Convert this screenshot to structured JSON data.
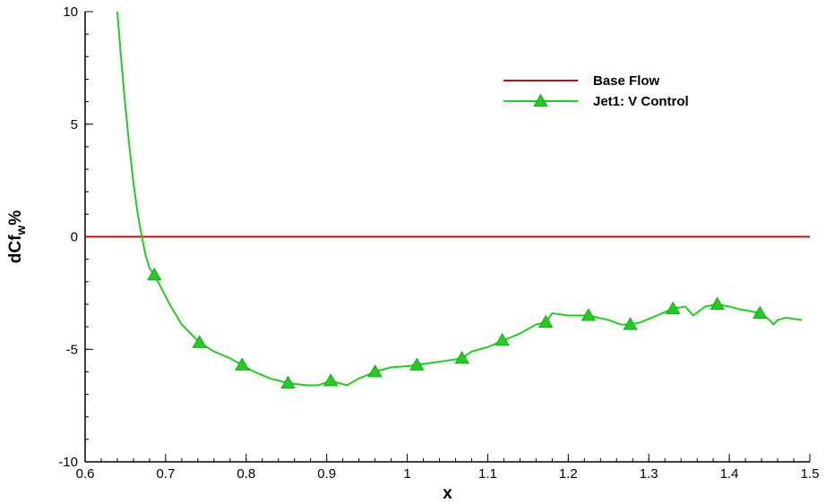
{
  "chart_data": {
    "type": "line",
    "xlabel": "x",
    "ylabel": {
      "main": "dCf",
      "sub": "w",
      "suffix": "%"
    },
    "xlim": [
      0.6,
      1.5
    ],
    "ylim": [
      -10,
      10
    ],
    "x_ticks": [
      0.6,
      0.7,
      0.8,
      0.9,
      1.0,
      1.1,
      1.2,
      1.3,
      1.4,
      1.5
    ],
    "x_tick_labels": [
      "0.6",
      "0.7",
      "0.8",
      "0.9",
      "1",
      "1.1",
      "1.2",
      "1.3",
      "1.4",
      "1.5"
    ],
    "y_ticks": [
      -10,
      -5,
      0,
      5,
      10
    ],
    "y_tick_labels": [
      "-10",
      "-5",
      "0",
      "5",
      "10"
    ],
    "grid": false,
    "legend_position": "top-right",
    "series": [
      {
        "name": "Base Flow",
        "color": "#b01818",
        "marker": "none",
        "x": [
          0.6,
          1.5
        ],
        "y": [
          0,
          0
        ]
      },
      {
        "name": "Jet1: V Control",
        "color": "#22cc22",
        "marker": "triangle",
        "x": [
          0.64,
          0.645,
          0.65,
          0.655,
          0.66,
          0.665,
          0.67,
          0.675,
          0.68,
          0.686,
          0.695,
          0.705,
          0.72,
          0.742,
          0.76,
          0.78,
          0.795,
          0.81,
          0.83,
          0.852,
          0.875,
          0.89,
          0.905,
          0.915,
          0.925,
          0.94,
          0.96,
          0.98,
          1.0,
          1.012,
          1.03,
          1.05,
          1.068,
          1.08,
          1.1,
          1.12,
          1.14,
          1.16,
          1.172,
          1.18,
          1.2,
          1.225,
          1.25,
          1.265,
          1.277,
          1.29,
          1.31,
          1.33,
          1.345,
          1.355,
          1.37,
          1.385,
          1.4,
          1.41,
          1.425,
          1.438,
          1.45,
          1.455,
          1.46,
          1.47,
          1.48,
          1.49
        ],
        "y": [
          10,
          7.8,
          5.8,
          4.0,
          2.4,
          1.1,
          0.1,
          -0.8,
          -1.4,
          -1.7,
          -2.3,
          -3.0,
          -3.9,
          -4.7,
          -5.1,
          -5.4,
          -5.7,
          -6.0,
          -6.3,
          -6.5,
          -6.6,
          -6.6,
          -6.4,
          -6.5,
          -6.6,
          -6.3,
          -6.0,
          -5.8,
          -5.75,
          -5.7,
          -5.6,
          -5.5,
          -5.4,
          -5.1,
          -4.9,
          -4.6,
          -4.3,
          -3.9,
          -3.8,
          -3.4,
          -3.5,
          -3.5,
          -3.7,
          -3.9,
          -3.9,
          -3.8,
          -3.5,
          -3.2,
          -3.1,
          -3.5,
          -3.1,
          -3.0,
          -3.1,
          -3.2,
          -3.3,
          -3.4,
          -3.7,
          -3.9,
          -3.7,
          -3.6,
          -3.65,
          -3.7
        ],
        "marker_x": [
          0.686,
          0.742,
          0.795,
          0.852,
          0.905,
          0.96,
          1.012,
          1.068,
          1.118,
          1.172,
          1.225,
          1.277,
          1.33,
          1.385,
          1.438
        ],
        "marker_y": [
          -1.7,
          -4.7,
          -5.7,
          -6.5,
          -6.4,
          -6.0,
          -5.7,
          -5.4,
          -4.6,
          -3.8,
          -3.5,
          -3.9,
          -3.2,
          -3.0,
          -3.4
        ]
      }
    ]
  }
}
